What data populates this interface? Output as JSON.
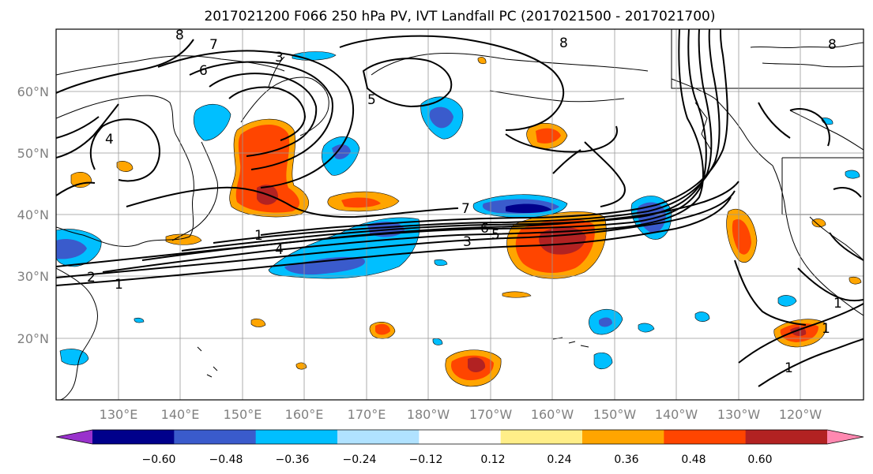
{
  "title": "2017021200 F066 250 hPa PV, IVT Landfall PC (2017021500 - 2017021700)",
  "lat_labels": [
    "60°N",
    "50°N",
    "40°N",
    "30°N",
    "20°N"
  ],
  "lon_labels": [
    "130°E",
    "140°E",
    "150°E",
    "160°E",
    "170°E",
    "180°W",
    "170°W",
    "160°W",
    "150°W",
    "140°W",
    "130°W",
    "120°W"
  ],
  "colorbar": {
    "colors": [
      "#9932cc",
      "#00008b",
      "#3a5bcc",
      "#00bfff",
      "#b0e2ff",
      "#ffffff",
      "#ffee88",
      "#ffa500",
      "#ff4500",
      "#b22222",
      "#ff88b0"
    ],
    "ticks": [
      "−0.60",
      "−0.48",
      "−0.36",
      "−0.24",
      "−0.12",
      "0.12",
      "0.24",
      "0.36",
      "0.48",
      "0.60"
    ]
  },
  "contour_labels": [
    "8",
    "7",
    "6",
    "3",
    "4",
    "5",
    "8",
    "7",
    "6",
    "5",
    "3",
    "1",
    "4",
    "2",
    "1",
    "1",
    "1",
    "1",
    "8"
  ]
}
